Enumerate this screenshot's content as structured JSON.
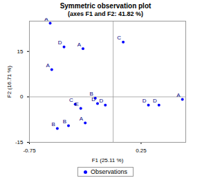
{
  "chart_data": {
    "type": "scatter",
    "title": "Symmetric observation plot",
    "subtitle": "(axes F1 and F2: 41.82 %)",
    "x_label": "F1 (25.11 %)",
    "y_label": "F2 (16.71 %)",
    "xlim": [
      -0.75,
      0.65
    ],
    "ylim": [
      -15,
      25
    ],
    "xticks": [
      -0.75,
      0.25
    ],
    "yticks": [
      -15,
      0,
      15
    ],
    "legend": "bottom",
    "series": [
      {
        "name": "Observations",
        "color": "#0000ff",
        "marker": "circle",
        "x": [
          -0.564,
          -0.44,
          -0.27,
          -0.55,
          0.09,
          -0.16,
          -0.14,
          -0.07,
          -0.34,
          -0.29,
          -0.25,
          -0.5,
          -0.4,
          0.316,
          0.41,
          0.62
        ],
        "y": [
          24.3,
          16.5,
          15.9,
          9.0,
          18.1,
          -0.4,
          -2.2,
          -2.7,
          -2.4,
          -3.8,
          -8.6,
          -10.4,
          -9.5,
          -2.7,
          -2.7,
          -0.8
        ],
        "labels": [
          "A",
          "D",
          "A",
          "A",
          "C",
          "B",
          "D",
          "D",
          "C",
          "E",
          "A",
          "B",
          "B",
          "D",
          "D",
          "A"
        ]
      }
    ]
  }
}
